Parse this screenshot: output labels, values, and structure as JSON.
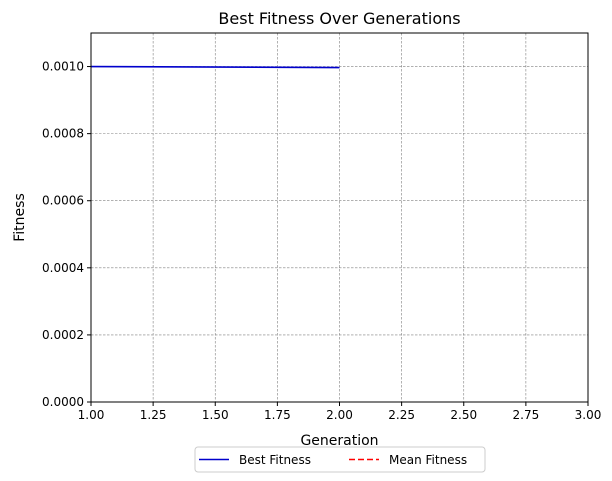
{
  "chart_data": {
    "type": "line",
    "title": "Best Fitness Over Generations",
    "xlabel": "Generation",
    "ylabel": "Fitness",
    "xlim": [
      1.0,
      3.0
    ],
    "ylim": [
      0.0,
      0.0011
    ],
    "xticks": [
      1.0,
      1.25,
      1.5,
      1.75,
      2.0,
      2.25,
      2.5,
      2.75,
      3.0
    ],
    "xtick_labels": [
      "1.00",
      "1.25",
      "1.50",
      "1.75",
      "2.00",
      "2.25",
      "2.50",
      "2.75",
      "3.00"
    ],
    "yticks": [
      0.0,
      0.0002,
      0.0004,
      0.0006,
      0.0008,
      0.001
    ],
    "ytick_labels": [
      "0.0000",
      "0.0002",
      "0.0004",
      "0.0006",
      "0.0008",
      "0.0010"
    ],
    "grid": true,
    "legend_position": "bottom-center",
    "series": [
      {
        "name": "Best Fitness",
        "color": "#0000cc",
        "style": "solid",
        "x": [
          1,
          2
        ],
        "y": [
          0.001,
          0.000997
        ]
      },
      {
        "name": "Mean Fitness",
        "color": "#ff0000",
        "style": "dashed",
        "x": [],
        "y": []
      }
    ]
  }
}
